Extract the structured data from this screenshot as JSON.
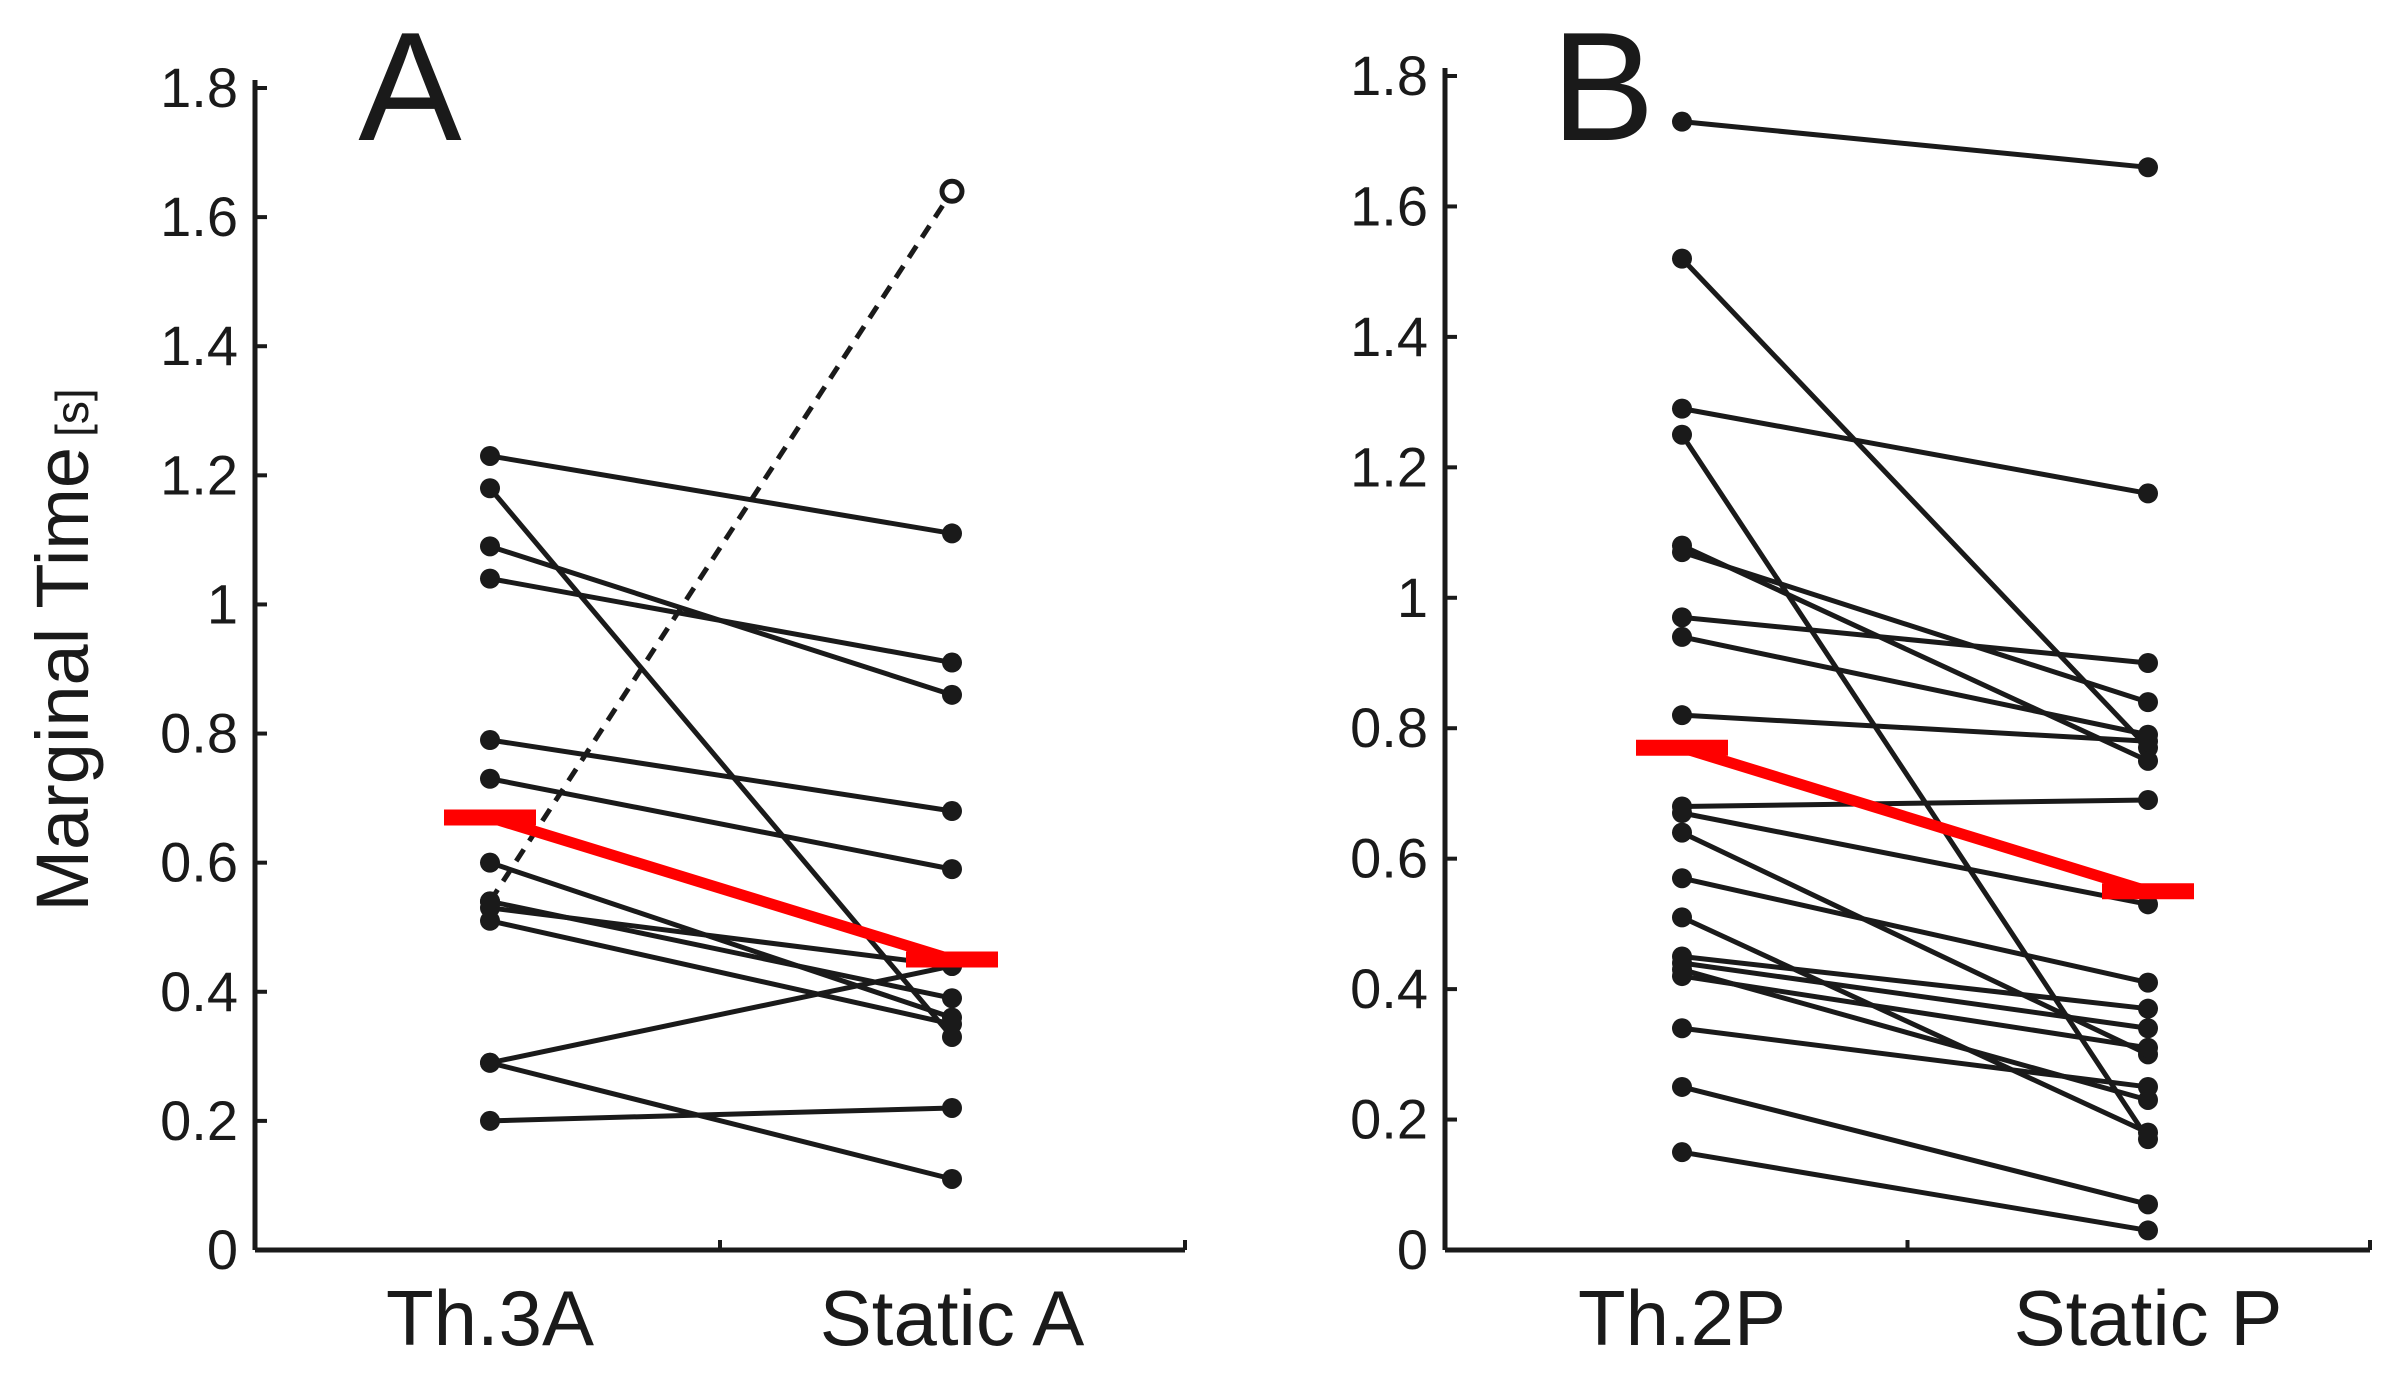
{
  "ylabel": "Marginal Time",
  "ylabel_unit": "[s]",
  "colors": {
    "ink": "#1a1a1a",
    "mean": "#ff0000"
  },
  "chart_data": [
    {
      "type": "line",
      "panel_label": "A",
      "categories": [
        "Th.3A",
        "Static A"
      ],
      "yticks": [
        "0",
        "0.2",
        "0.4",
        "0.6",
        "0.8",
        "1",
        "1.2",
        "1.4",
        "1.6",
        "1.8"
      ],
      "ylim": [
        0,
        1.8
      ],
      "mean": [
        0.67,
        0.45
      ],
      "series": [
        {
          "name": "s1",
          "values": [
            1.23,
            1.11
          ]
        },
        {
          "name": "s2",
          "values": [
            1.18,
            0.33
          ]
        },
        {
          "name": "s3",
          "values": [
            1.09,
            0.86
          ]
        },
        {
          "name": "s4",
          "values": [
            1.04,
            0.91
          ]
        },
        {
          "name": "s5",
          "values": [
            0.79,
            0.68
          ]
        },
        {
          "name": "s6",
          "values": [
            0.73,
            0.59
          ]
        },
        {
          "name": "s7",
          "values": [
            0.6,
            0.36
          ]
        },
        {
          "name": "s8",
          "values": [
            0.54,
            0.39
          ]
        },
        {
          "name": "s9",
          "values": [
            0.53,
            0.44
          ]
        },
        {
          "name": "s10",
          "values": [
            0.51,
            0.35
          ]
        },
        {
          "name": "s11",
          "values": [
            0.29,
            0.44
          ]
        },
        {
          "name": "s12",
          "values": [
            0.29,
            0.11
          ]
        },
        {
          "name": "s13",
          "values": [
            0.2,
            0.22
          ]
        },
        {
          "name": "outlier",
          "values": [
            0.54,
            1.64
          ],
          "dashed": true
        }
      ]
    },
    {
      "type": "line",
      "panel_label": "B",
      "categories": [
        "Th.2P",
        "Static P"
      ],
      "yticks": [
        "0",
        "0.2",
        "0.4",
        "0.6",
        "0.8",
        "1",
        "1.2",
        "1.4",
        "1.6",
        "1.8"
      ],
      "ylim": [
        0,
        1.8
      ],
      "mean": [
        0.77,
        0.55
      ],
      "series": [
        {
          "name": "s1",
          "values": [
            1.73,
            1.66
          ]
        },
        {
          "name": "s2",
          "values": [
            1.52,
            0.77
          ]
        },
        {
          "name": "s3",
          "values": [
            1.29,
            1.16
          ]
        },
        {
          "name": "s4",
          "values": [
            1.25,
            0.17
          ]
        },
        {
          "name": "s5",
          "values": [
            1.08,
            0.75
          ]
        },
        {
          "name": "s6",
          "values": [
            1.07,
            0.84
          ]
        },
        {
          "name": "s7",
          "values": [
            0.97,
            0.9
          ]
        },
        {
          "name": "s8",
          "values": [
            0.94,
            0.79
          ]
        },
        {
          "name": "s9",
          "values": [
            0.82,
            0.78
          ]
        },
        {
          "name": "s10",
          "values": [
            0.68,
            0.69
          ]
        },
        {
          "name": "s11",
          "values": [
            0.67,
            0.53
          ]
        },
        {
          "name": "s12",
          "values": [
            0.64,
            0.3
          ]
        },
        {
          "name": "s13",
          "values": [
            0.57,
            0.41
          ]
        },
        {
          "name": "s14",
          "values": [
            0.51,
            0.18
          ]
        },
        {
          "name": "s15",
          "values": [
            0.45,
            0.37
          ]
        },
        {
          "name": "s16",
          "values": [
            0.44,
            0.34
          ]
        },
        {
          "name": "s17",
          "values": [
            0.42,
            0.31
          ]
        },
        {
          "name": "s18",
          "values": [
            0.43,
            0.23
          ]
        },
        {
          "name": "s19",
          "values": [
            0.34,
            0.25
          ]
        },
        {
          "name": "s20",
          "values": [
            0.25,
            0.07
          ]
        },
        {
          "name": "s21",
          "values": [
            0.15,
            0.03
          ]
        }
      ]
    }
  ]
}
